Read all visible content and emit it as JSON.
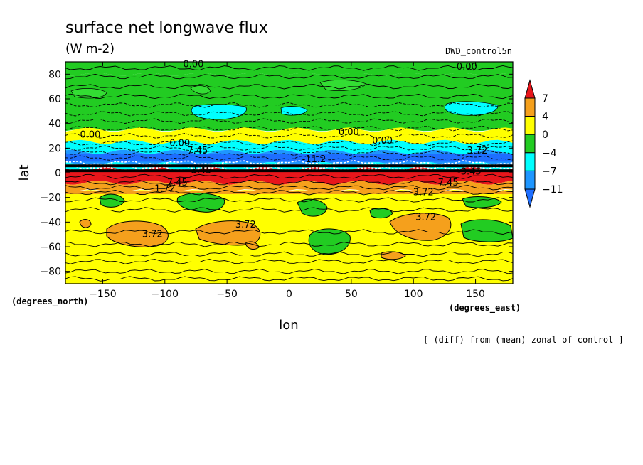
{
  "chart_data": {
    "type": "heatmap",
    "title": "surface net longwave flux",
    "units": "(W m-2)",
    "experiment": "DWD_control5n",
    "xlabel": "lon",
    "ylabel": "lat",
    "x_unit_label": "(degrees_east)",
    "y_unit_label": "(degrees_north)",
    "footnote": "[ (diff) from (mean) zonal of control ]",
    "xlim": [
      -180,
      180
    ],
    "ylim": [
      -90,
      90
    ],
    "x_ticks": [
      -150,
      -100,
      -50,
      0,
      50,
      100,
      150
    ],
    "y_ticks": [
      80,
      60,
      40,
      20,
      0,
      -20,
      -40,
      -60,
      -80
    ],
    "colorbar": {
      "levels": [
        7,
        4,
        0,
        -4,
        -7,
        -11
      ],
      "colors": [
        "#e8161b",
        "#f5a01c",
        "#ffff00",
        "#22cc22",
        "#00ffff",
        "#1e96ff",
        "#1e6eff"
      ]
    },
    "zonal_bands": [
      {
        "lat": [
          80,
          90
        ],
        "category": "green"
      },
      {
        "lat": [
          35,
          80
        ],
        "category": "green"
      },
      {
        "lat": [
          25,
          35
        ],
        "category": "yellow"
      },
      {
        "lat": [
          17,
          25
        ],
        "category": "cyan"
      },
      {
        "lat": [
          7,
          17
        ],
        "category": "blue"
      },
      {
        "lat": [
          3,
          7
        ],
        "category": "cyan"
      },
      {
        "lat": [
          -8,
          3
        ],
        "category": "red"
      },
      {
        "lat": [
          -15,
          -8
        ],
        "category": "orange"
      },
      {
        "lat": [
          -90,
          -15
        ],
        "category": "yellow"
      }
    ],
    "contour_labels": [
      {
        "lon": -77,
        "lat": 88,
        "text": "0.00"
      },
      {
        "lon": 143,
        "lat": 86,
        "text": "0.00"
      },
      {
        "lon": -160,
        "lat": 31,
        "text": "0.00"
      },
      {
        "lon": -88,
        "lat": 24,
        "text": "0.00"
      },
      {
        "lon": 48,
        "lat": 33,
        "text": "0.00"
      },
      {
        "lon": 75,
        "lat": 26,
        "text": "0.00"
      },
      {
        "lon": -75,
        "lat": 18,
        "text": "-7.45"
      },
      {
        "lon": 20,
        "lat": 11,
        "text": "-11.2"
      },
      {
        "lon": 150,
        "lat": 18,
        "text": "-3.72"
      },
      {
        "lon": -72,
        "lat": 2,
        "text": "-3.45"
      },
      {
        "lon": 145,
        "lat": 1,
        "text": "-3.45"
      },
      {
        "lon": -90,
        "lat": -8,
        "text": "7.45"
      },
      {
        "lon": 128,
        "lat": -8,
        "text": "7.45"
      },
      {
        "lon": -100,
        "lat": -13,
        "text": "1.72"
      },
      {
        "lon": 108,
        "lat": -16,
        "text": "3.72"
      },
      {
        "lon": -110,
        "lat": -50,
        "text": "3.72"
      },
      {
        "lon": -35,
        "lat": -42,
        "text": "3.72"
      },
      {
        "lon": 110,
        "lat": -36,
        "text": "3.72"
      }
    ]
  }
}
